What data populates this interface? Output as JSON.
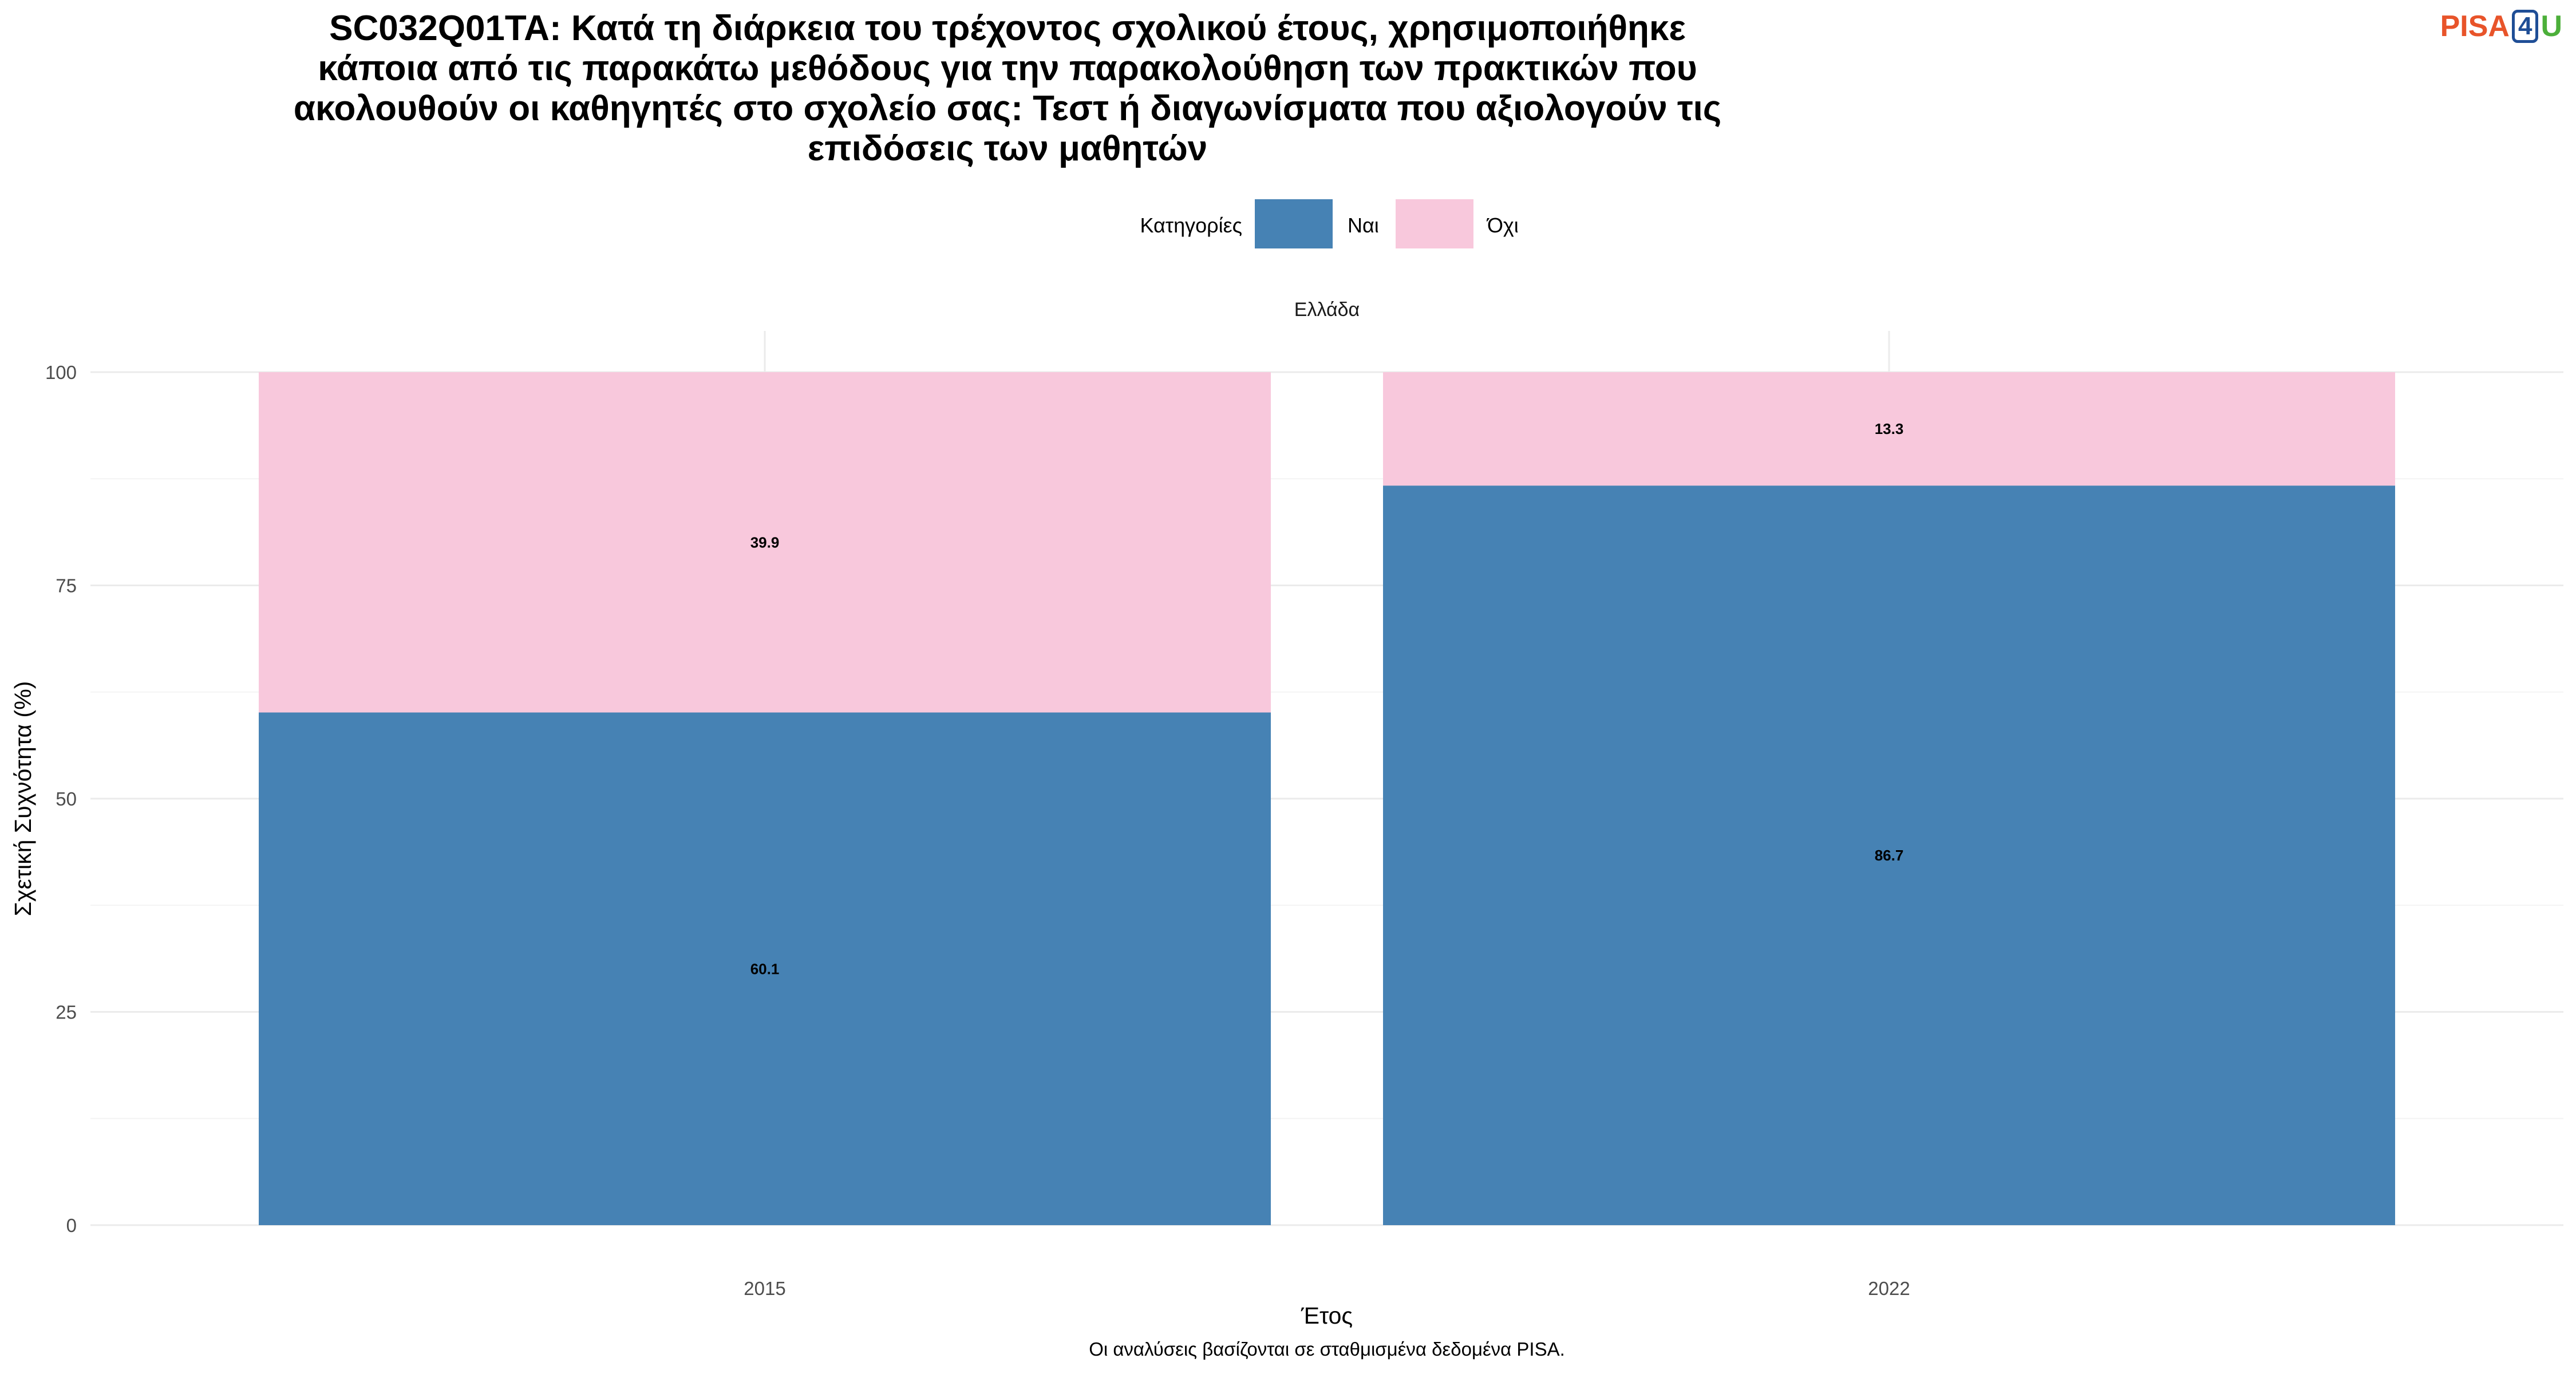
{
  "logo": {
    "part1": "PISA",
    "part2": "4",
    "part3": "U"
  },
  "title_lines": [
    "SC032Q01TA: Κατά τη διάρκεια του τρέχοντος σχολικού έτους, χρησιμοποιήθηκε",
    "κάποια από τις παρακάτω μεθόδους για την παρακολούθηση των πρακτικών που",
    "ακολουθούν οι καθηγητές στο σχολείο σας: Τεστ ή διαγωνίσματα που αξιολογούν τις",
    "επιδόσεις των μαθητών"
  ],
  "caption": "Οι αναλύσεις βασίζονται σε σταθμισμένα δεδομένα PISA.",
  "colors": {
    "nai": "#4682b4",
    "ochi": "#f8c8dc"
  },
  "chart_data": {
    "type": "bar",
    "stacked": true,
    "title": "SC032Q01TA: Κατά τη διάρκεια του τρέχοντος σχολικού έτους, χρησιμοποιήθηκε κάποια από τις παρακάτω μεθόδους για την παρακολούθηση των πρακτικών που ακολουθούν οι καθηγητές στο σχολείο σας: Τεστ ή διαγωνίσματα που αξιολογούν τις επιδόσεις των μαθητών",
    "facet": "Ελλάδα",
    "legend_title": "Κατηγορίες",
    "legend_position": "top",
    "categories": [
      "2015",
      "2022"
    ],
    "series": [
      {
        "name": "Ναι",
        "values": [
          60.1,
          86.7
        ]
      },
      {
        "name": "Όχι",
        "values": [
          39.9,
          13.3
        ]
      }
    ],
    "xlabel": "Έτος",
    "ylabel": "Σχετική Συχνότητα (%)",
    "ylim": [
      0,
      100
    ],
    "yticks": [
      0,
      25,
      50,
      75,
      100
    ],
    "grid": true
  }
}
